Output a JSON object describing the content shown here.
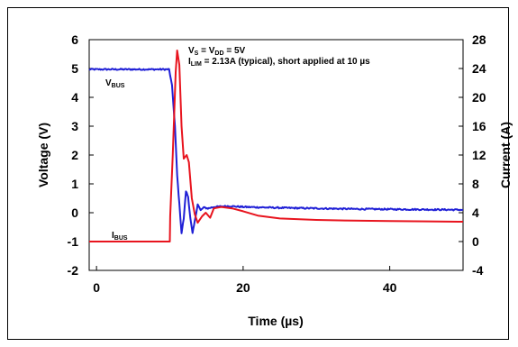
{
  "chart_data": {
    "type": "line",
    "title": "",
    "xlabel": "Time (µs)",
    "ylabel_left": "Voltage (V)",
    "ylabel_right": "Current (A)",
    "xlim": [
      -1,
      50
    ],
    "ylim_left": [
      -2,
      6
    ],
    "ylim_right": [
      -4,
      28
    ],
    "x_ticks": [
      0,
      20,
      40
    ],
    "y_ticks_left": [
      -2,
      -1,
      0,
      1,
      2,
      3,
      4,
      5,
      6
    ],
    "y_ticks_right": [
      -4,
      0,
      4,
      8,
      12,
      16,
      20,
      24,
      28
    ],
    "grid": false,
    "annotations": {
      "line1": {
        "p1": "V",
        "s1": "S",
        "p2": " = V",
        "s2": "DD",
        "p3": " = 5V"
      },
      "line2": {
        "p1": "I",
        "s1": "LIM",
        "p2": " = 2.13A (typical), short applied at 10 µs"
      }
    },
    "series_labels": {
      "vbus": {
        "main": "V",
        "sub": "BUS"
      },
      "ibus": {
        "main": "I",
        "sub": "BUS"
      }
    },
    "series": [
      {
        "key": "vbus",
        "axis": "left",
        "color": "#1f1fd6",
        "noise": 0.025,
        "points": [
          [
            -1,
            4.97
          ],
          [
            9.9,
            4.97
          ],
          [
            10.3,
            4.4
          ],
          [
            10.7,
            3.0
          ],
          [
            11.0,
            1.3
          ],
          [
            11.3,
            0.3
          ],
          [
            11.6,
            -0.7
          ],
          [
            11.9,
            -0.2
          ],
          [
            12.2,
            0.75
          ],
          [
            12.5,
            0.55
          ],
          [
            12.8,
            -0.2
          ],
          [
            13.1,
            -0.72
          ],
          [
            13.4,
            -0.3
          ],
          [
            13.8,
            0.3
          ],
          [
            14.2,
            0.08
          ],
          [
            14.6,
            0.18
          ],
          [
            15.2,
            0.15
          ],
          [
            16,
            0.2
          ],
          [
            18,
            0.23
          ],
          [
            20,
            0.2
          ],
          [
            25,
            0.17
          ],
          [
            30,
            0.15
          ],
          [
            35,
            0.13
          ],
          [
            40,
            0.12
          ],
          [
            45,
            0.11
          ],
          [
            50,
            0.1
          ]
        ]
      },
      {
        "key": "ibus",
        "axis": "right",
        "color": "#e8141e",
        "noise": 0,
        "points": [
          [
            -1,
            0.0
          ],
          [
            10.0,
            0.0
          ],
          [
            10.05,
            3.5
          ],
          [
            10.4,
            12.0
          ],
          [
            10.8,
            23.5
          ],
          [
            11.0,
            26.5
          ],
          [
            11.3,
            24.5
          ],
          [
            11.6,
            16.0
          ],
          [
            11.9,
            11.5
          ],
          [
            12.3,
            12.0
          ],
          [
            12.6,
            11.0
          ],
          [
            13.0,
            6.0
          ],
          [
            13.4,
            3.8
          ],
          [
            13.8,
            2.6
          ],
          [
            14.4,
            3.5
          ],
          [
            14.9,
            4.0
          ],
          [
            15.5,
            3.3
          ],
          [
            16.0,
            4.6
          ],
          [
            17.0,
            4.8
          ],
          [
            18.5,
            4.6
          ],
          [
            20,
            4.2
          ],
          [
            22,
            3.6
          ],
          [
            25,
            3.2
          ],
          [
            30,
            3.0
          ],
          [
            35,
            2.9
          ],
          [
            40,
            2.85
          ],
          [
            45,
            2.8
          ],
          [
            50,
            2.75
          ]
        ]
      }
    ]
  }
}
